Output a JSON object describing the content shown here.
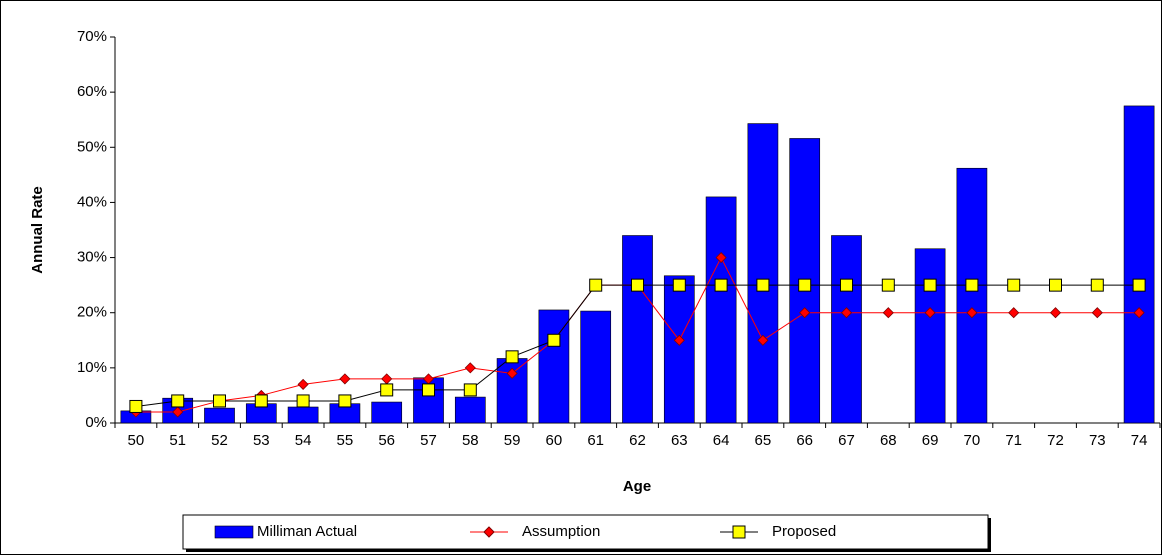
{
  "chart_data": {
    "type": "bar-line",
    "x_label": "Age",
    "y_label": "Annual Rate",
    "categories": [
      "50",
      "51",
      "52",
      "53",
      "54",
      "55",
      "56",
      "57",
      "58",
      "59",
      "60",
      "61",
      "62",
      "63",
      "64",
      "65",
      "66",
      "67",
      "68",
      "69",
      "70",
      "71",
      "72",
      "73",
      "74"
    ],
    "series": [
      {
        "name": "Milliman Actual",
        "type": "bar",
        "color": "#0000ff",
        "values": [
          2.2,
          4.5,
          2.7,
          3.5,
          2.9,
          3.5,
          3.8,
          8.2,
          4.7,
          11.7,
          20.5,
          20.3,
          34,
          26.7,
          41,
          54.3,
          51.6,
          34,
          null,
          31.6,
          46.2,
          null,
          null,
          null,
          57.5
        ]
      },
      {
        "name": "Assumption",
        "type": "line",
        "color": "#ff0000",
        "marker": "diamond",
        "values": [
          2,
          2,
          4,
          5,
          7,
          8,
          8,
          8,
          10,
          9,
          15,
          25,
          25,
          15,
          30,
          15,
          20,
          20,
          20,
          20,
          20,
          20,
          20,
          20,
          20
        ]
      },
      {
        "name": "Proposed",
        "type": "line",
        "color": "#000000",
        "marker": "square",
        "marker_color": "#ffff00",
        "values": [
          3,
          4,
          4,
          4,
          4,
          4,
          6,
          6,
          6,
          12,
          15,
          25,
          25,
          25,
          25,
          25,
          25,
          25,
          25,
          25,
          25,
          25,
          25,
          25,
          25
        ]
      }
    ],
    "ylim": [
      0,
      70
    ],
    "yticks": [
      {
        "value": 0,
        "label": "0%"
      },
      {
        "value": 10,
        "label": "10%"
      },
      {
        "value": 20,
        "label": "20%"
      },
      {
        "value": 30,
        "label": "30%"
      },
      {
        "value": 40,
        "label": "40%"
      },
      {
        "value": 50,
        "label": "50%"
      },
      {
        "value": 60,
        "label": "60%"
      },
      {
        "value": 70,
        "label": "70%"
      }
    ],
    "legend": "bottom"
  }
}
